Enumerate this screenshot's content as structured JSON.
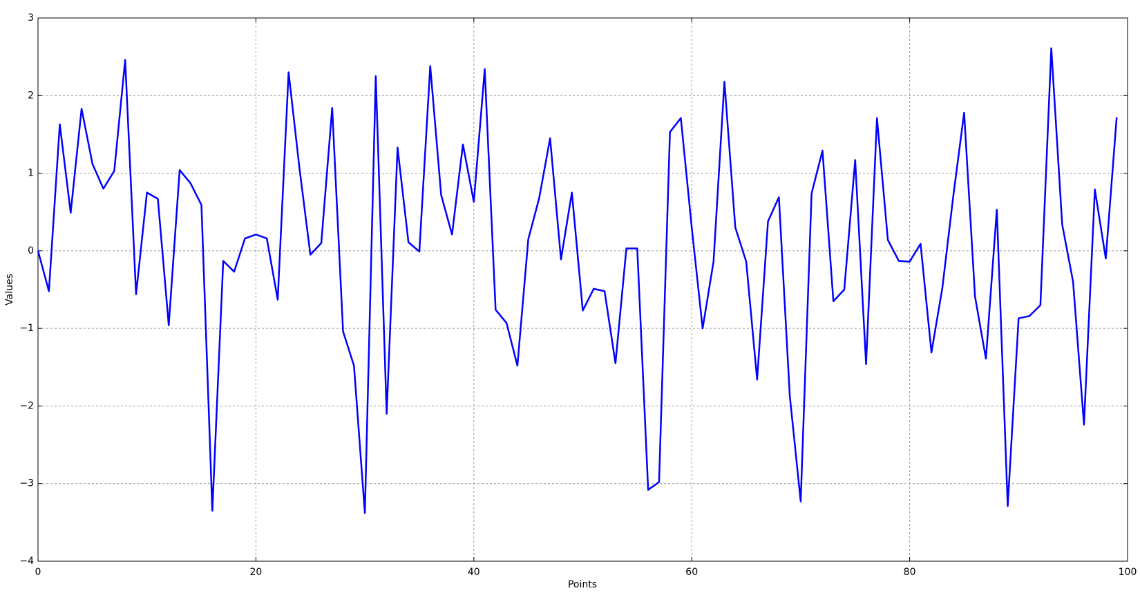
{
  "chart_data": {
    "type": "line",
    "xlabel": "Points",
    "ylabel": "Values",
    "x": [
      0,
      1,
      2,
      3,
      4,
      5,
      6,
      7,
      8,
      9,
      10,
      11,
      12,
      13,
      14,
      15,
      16,
      17,
      18,
      19,
      20,
      21,
      22,
      23,
      24,
      25,
      26,
      27,
      28,
      29,
      30,
      31,
      32,
      33,
      34,
      35,
      36,
      37,
      38,
      39,
      40,
      41,
      42,
      43,
      44,
      45,
      46,
      47,
      48,
      49,
      50,
      51,
      52,
      53,
      54,
      55,
      56,
      57,
      58,
      59,
      60,
      61,
      62,
      63,
      64,
      65,
      66,
      67,
      68,
      69,
      70,
      71,
      72,
      73,
      74,
      75,
      76,
      77,
      78,
      79,
      80,
      81,
      82,
      83,
      84,
      85,
      86,
      87,
      88,
      89,
      90,
      91,
      92,
      93,
      94,
      95,
      96,
      97,
      98,
      99
    ],
    "series": [
      {
        "color": "#0000ff",
        "values": [
          0.0,
          -0.52,
          1.63,
          0.49,
          1.83,
          1.12,
          0.8,
          1.03,
          2.46,
          -0.56,
          0.75,
          0.67,
          -0.96,
          1.04,
          0.87,
          0.59,
          -3.35,
          -0.13,
          -0.27,
          0.16,
          0.21,
          0.16,
          -0.63,
          2.3,
          1.06,
          -0.05,
          0.1,
          1.84,
          -1.04,
          -1.48,
          -3.38,
          2.25,
          -2.1,
          1.33,
          0.11,
          -0.01,
          2.38,
          0.72,
          0.21,
          1.37,
          0.63,
          2.34,
          -0.76,
          -0.93,
          -1.48,
          0.15,
          0.68,
          1.45,
          -0.11,
          0.75,
          -0.77,
          -0.49,
          -0.52,
          -1.45,
          0.03,
          0.03,
          -3.08,
          -2.98,
          1.53,
          1.71,
          0.3,
          -1.0,
          -0.14,
          2.18,
          0.3,
          -0.14,
          -1.66,
          0.38,
          0.69,
          -1.87,
          -3.23,
          0.74,
          1.29,
          -0.65,
          -0.5,
          1.17,
          -1.46,
          1.71,
          0.14,
          -0.13,
          -0.14,
          0.09,
          -1.31,
          -0.48,
          0.7,
          1.78,
          -0.59,
          -1.39,
          0.53,
          -3.29,
          -0.87,
          -0.84,
          -0.7,
          2.61,
          0.34,
          -0.4,
          -2.24,
          0.79,
          -0.1,
          1.72
        ]
      }
    ],
    "xlim": [
      0,
      100
    ],
    "xticks": [
      0,
      20,
      40,
      60,
      80,
      100
    ],
    "ylim": [
      -4,
      3
    ],
    "yticks": [
      {
        "value": -4,
        "label": "−4"
      },
      {
        "value": -3,
        "label": "−3"
      },
      {
        "value": -2,
        "label": "−2"
      },
      {
        "value": -1,
        "label": "−1"
      },
      0,
      1,
      2,
      3
    ],
    "grid": true
  }
}
